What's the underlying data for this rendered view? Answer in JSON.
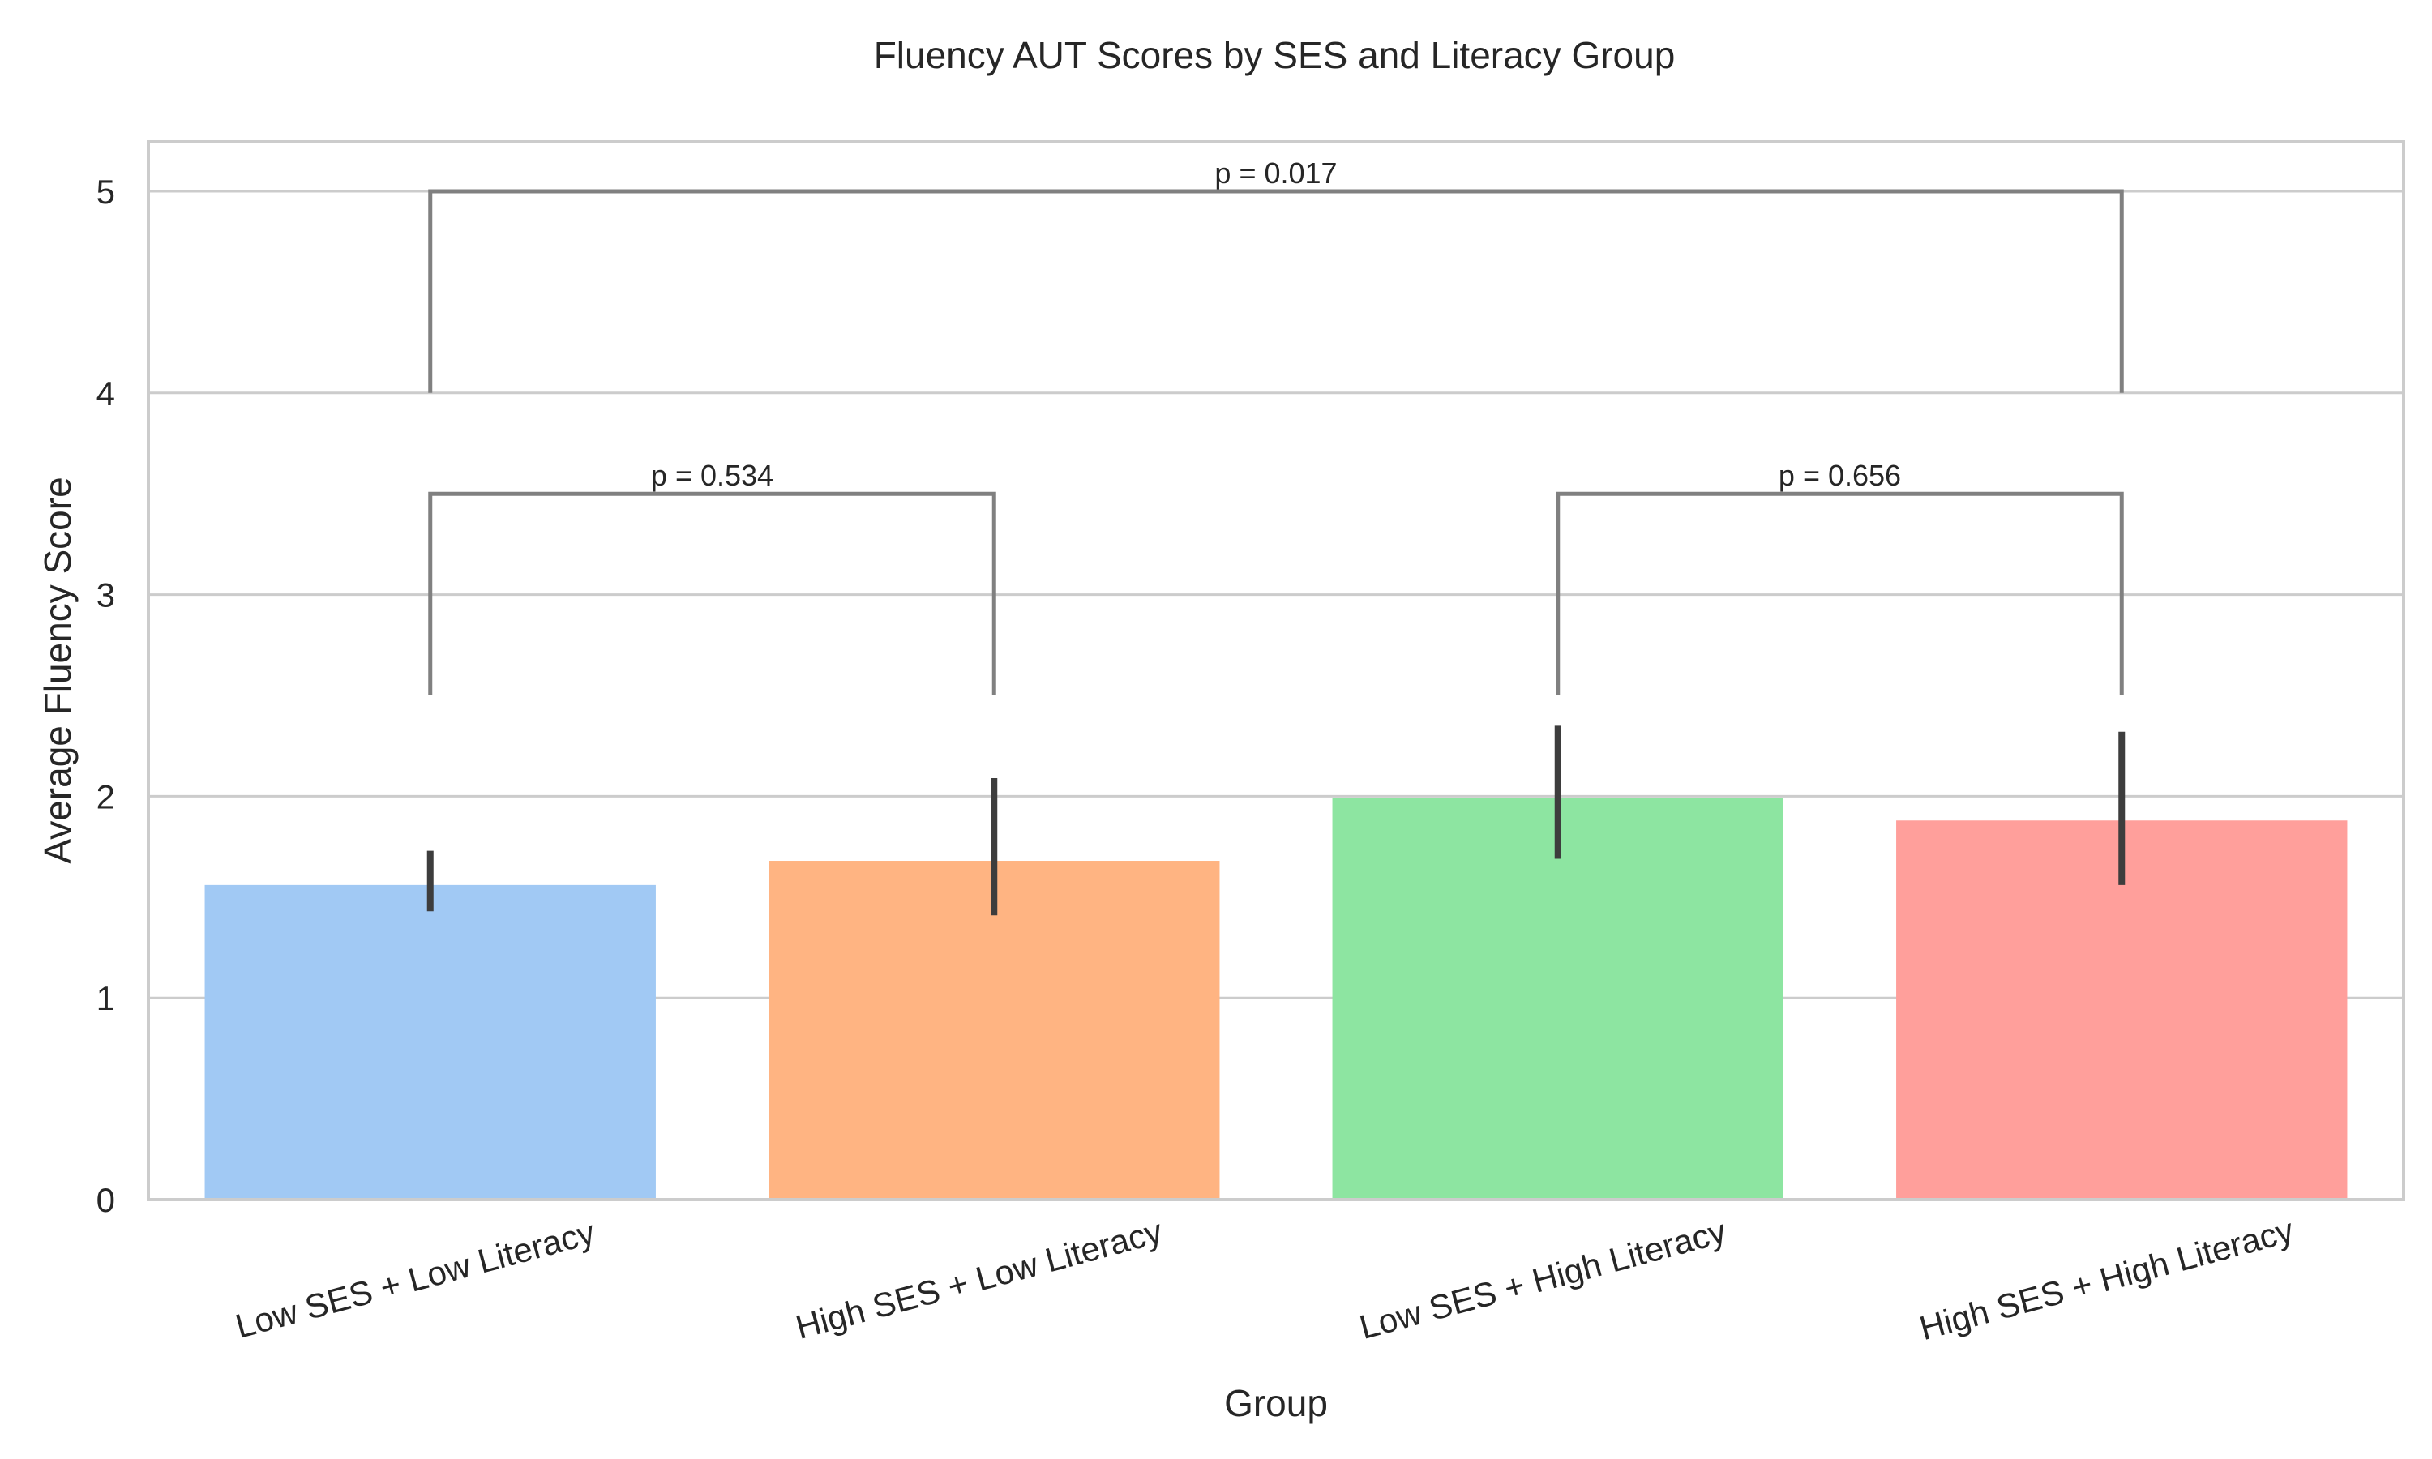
{
  "chart_data": {
    "type": "bar",
    "title": "Fluency AUT Scores by SES and Literacy Group",
    "xlabel": "Group",
    "ylabel": "Average Fluency Score",
    "categories": [
      "Low SES + Low Literacy",
      "High SES + Low Literacy",
      "Low SES + High Literacy",
      "High SES + High Literacy"
    ],
    "values": [
      1.56,
      1.68,
      1.99,
      1.88
    ],
    "error_bars": [
      [
        1.43,
        1.73
      ],
      [
        1.41,
        2.09
      ],
      [
        1.69,
        2.35
      ],
      [
        1.56,
        2.32
      ]
    ],
    "colors": [
      "#a1c9f4",
      "#ffb482",
      "#8de5a1",
      "#ff9f9b"
    ],
    "ylim": [
      0,
      5.25
    ],
    "yticks": [
      0,
      1,
      2,
      3,
      4,
      5
    ],
    "grid": true,
    "annotations": [
      {
        "text": "p = 0.534",
        "from": 0,
        "to": 1,
        "bottom": 2.5,
        "top": 3.5
      },
      {
        "text": "p = 0.656",
        "from": 2,
        "to": 3,
        "bottom": 2.5,
        "top": 3.5
      },
      {
        "text": "p = 0.017",
        "from": 0,
        "to": 3,
        "bottom": 4.0,
        "top": 5.0
      }
    ]
  }
}
